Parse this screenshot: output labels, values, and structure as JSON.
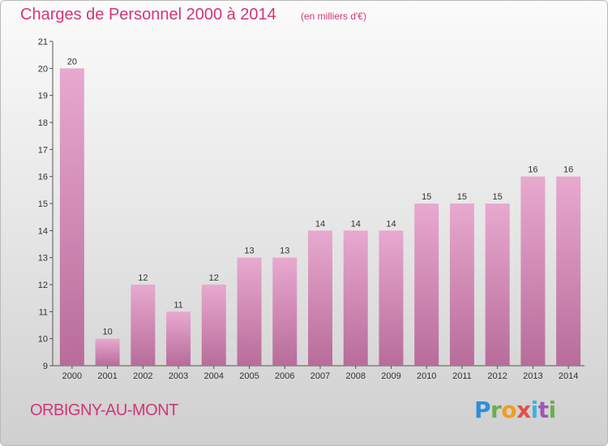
{
  "chart_data": {
    "type": "bar",
    "title": "Charges de Personnel 2000 à 2014",
    "subtitle": "(en milliers d'€)",
    "categories": [
      "2000",
      "2001",
      "2002",
      "2003",
      "2004",
      "2005",
      "2006",
      "2007",
      "2008",
      "2009",
      "2010",
      "2011",
      "2012",
      "2013",
      "2014"
    ],
    "values": [
      20,
      10,
      12,
      11,
      12,
      13,
      13,
      14,
      14,
      14,
      15,
      15,
      15,
      16,
      16
    ],
    "ylim": [
      9,
      21
    ],
    "yticks": [
      9,
      10,
      11,
      12,
      13,
      14,
      15,
      16,
      17,
      18,
      19,
      20,
      21
    ],
    "grid": false,
    "bar_color_top": "#e8a9cf",
    "bar_color_bottom": "#b86c9a"
  },
  "footer": {
    "city": "ORBIGNY-AU-MONT",
    "logo_parts": [
      "P",
      "r",
      "o",
      "x",
      "i",
      "t",
      "i"
    ]
  }
}
